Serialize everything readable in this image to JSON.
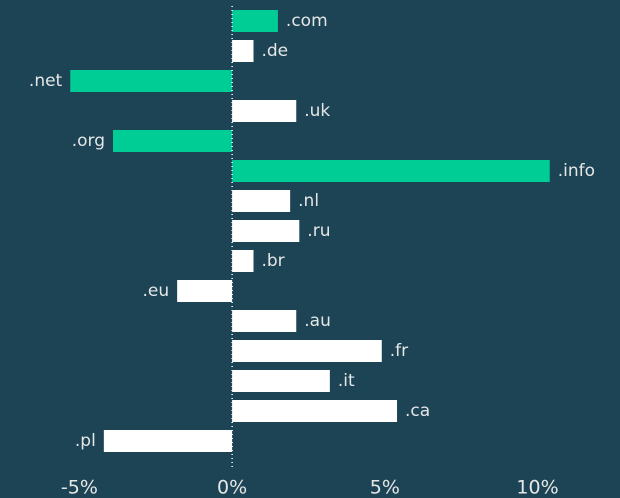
{
  "chart_data": {
    "type": "bar",
    "orientation": "horizontal",
    "categories": [
      ".com",
      ".de",
      ".net",
      ".uk",
      ".org",
      ".info",
      ".nl",
      ".ru",
      ".br",
      ".eu",
      ".au",
      ".fr",
      ".it",
      ".ca",
      ".pl"
    ],
    "values": [
      1.5,
      0.7,
      -5.3,
      2.1,
      -3.9,
      10.4,
      1.9,
      2.2,
      0.7,
      -1.8,
      2.1,
      4.9,
      3.2,
      5.4,
      -4.2
    ],
    "colors": [
      "#00cc96",
      "#ffffff",
      "#00cc96",
      "#ffffff",
      "#00cc96",
      "#00cc96",
      "#ffffff",
      "#ffffff",
      "#ffffff",
      "#ffffff",
      "#ffffff",
      "#ffffff",
      "#ffffff",
      "#ffffff",
      "#ffffff"
    ],
    "xlim": [
      -7.6,
      12.7
    ],
    "xticks": [
      {
        "value": -5,
        "label": "-5%"
      },
      {
        "value": 0,
        "label": "0%"
      },
      {
        "value": 5,
        "label": "5%"
      },
      {
        "value": 10,
        "label": "10%"
      }
    ],
    "zero_line": true
  }
}
